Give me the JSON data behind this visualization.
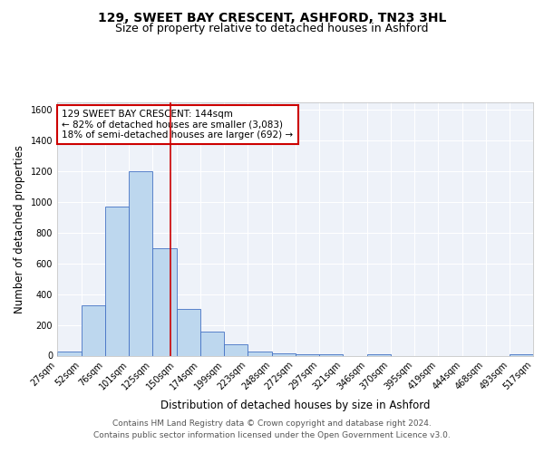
{
  "title_line1": "129, SWEET BAY CRESCENT, ASHFORD, TN23 3HL",
  "title_line2": "Size of property relative to detached houses in Ashford",
  "xlabel": "Distribution of detached houses by size in Ashford",
  "ylabel": "Number of detached properties",
  "footer_line1": "Contains HM Land Registry data © Crown copyright and database right 2024.",
  "footer_line2": "Contains public sector information licensed under the Open Government Licence v3.0.",
  "annotation_line1": "129 SWEET BAY CRESCENT: 144sqm",
  "annotation_line2": "← 82% of detached houses are smaller (3,083)",
  "annotation_line3": "18% of semi-detached houses are larger (692) →",
  "bin_edges": [
    27,
    52,
    76,
    101,
    125,
    150,
    174,
    199,
    223,
    248,
    272,
    297,
    321,
    346,
    370,
    395,
    419,
    444,
    468,
    493,
    517
  ],
  "bin_counts": [
    25,
    325,
    970,
    1200,
    700,
    305,
    155,
    75,
    25,
    15,
    10,
    10,
    0,
    10,
    0,
    0,
    0,
    0,
    0,
    10
  ],
  "bar_color": "#bdd7ee",
  "bar_edge_color": "#4472c4",
  "vline_color": "#cc0000",
  "vline_x": 144,
  "ylim": [
    0,
    1650
  ],
  "yticks": [
    0,
    200,
    400,
    600,
    800,
    1000,
    1200,
    1400,
    1600
  ],
  "bg_color": "#eef2f9",
  "grid_color": "#ffffff",
  "title_fontsize": 10,
  "subtitle_fontsize": 9,
  "axis_label_fontsize": 8.5,
  "tick_fontsize": 7,
  "annotation_fontsize": 7.5,
  "footer_fontsize": 6.5
}
